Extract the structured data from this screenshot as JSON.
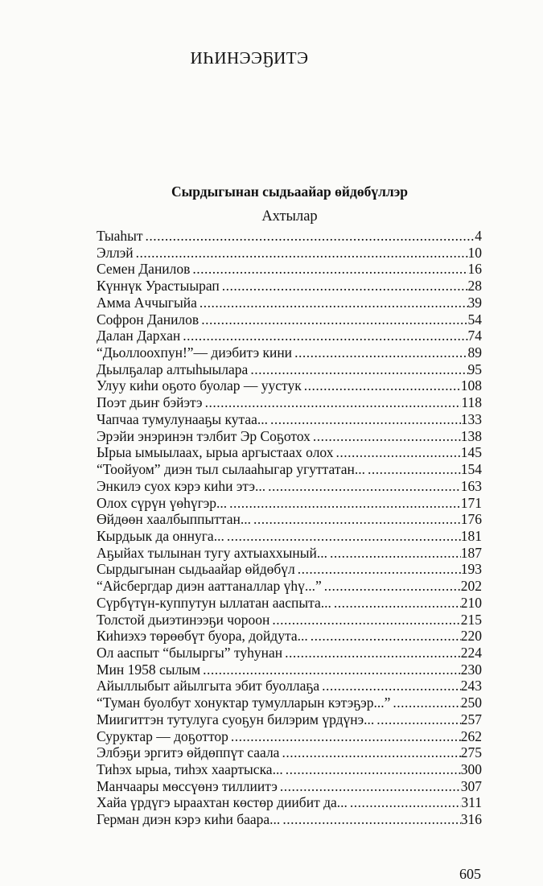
{
  "header": {
    "title": "ИҺИНЭЭҔИТЭ"
  },
  "subtitle": "Сырдыгынан сыдьаайар өйдөбүллэр",
  "section": "Ахтылар",
  "entries": [
    {
      "title": "Тыаһыт",
      "page": "4"
    },
    {
      "title": "Эллэй",
      "page": "10"
    },
    {
      "title": "Семен Данилов",
      "page": "16"
    },
    {
      "title": "Күннүк Урастыырап",
      "page": "28"
    },
    {
      "title": "Амма Аччыгыйа",
      "page": "39"
    },
    {
      "title": "Софрон Данилов",
      "page": "54"
    },
    {
      "title": "Далан Дархан",
      "page": "74"
    },
    {
      "title": "“Дьоллоохпун!”— диэбитэ кини",
      "page": "89"
    },
    {
      "title": "Дьылҕалар алтыһыылара",
      "page": "95"
    },
    {
      "title": "Улуу киһи оҕото буолар — уустук",
      "page": "108"
    },
    {
      "title": "Поэт дьиҥ бэйэтэ",
      "page": "118"
    },
    {
      "title": "Чапчаа тумулунааҕы кутаа...",
      "page": "133"
    },
    {
      "title": "Эрэйи энэринэн тэлбит Эр Соҕотох",
      "page": "138"
    },
    {
      "title": "Ырыа ымыылаах, ырыа аргыстаах олох",
      "page": "145"
    },
    {
      "title": "“Тоойуом” диэн тыл сылааһыгар угуттатан...",
      "page": "154"
    },
    {
      "title": "Энкилэ суох кэрэ киһи этэ...",
      "page": "163"
    },
    {
      "title": "Олох сүрүн үөһүгэр...",
      "page": "171"
    },
    {
      "title": "Өйдөөн хаалбыппыттан...",
      "page": "176"
    },
    {
      "title": "Кырдьык да оннуга...",
      "page": "181"
    },
    {
      "title": "Аҕыйах тылынан тугу ахтыаххыный...",
      "page": "187"
    },
    {
      "title": "Сырдыгынан сыдьаайар өйдөбүл",
      "page": "193"
    },
    {
      "title": "“Айсбергдар диэн ааттаналлар үһү...”",
      "page": "202"
    },
    {
      "title": "Сүрбүтүн-куппутун ыллатан ааспыта...",
      "page": "210"
    },
    {
      "title": "Толстой дьиэтинээҕи чороон",
      "page": "215"
    },
    {
      "title": "Киһиэхэ төрөөбүт буора, дойдута...",
      "page": "220"
    },
    {
      "title": "Ол ааспыт “былыргы” туһунан",
      "page": "224"
    },
    {
      "title": "Мин 1958 сылым",
      "page": "230"
    },
    {
      "title": "Айыллыбыт айылгыта эбит буоллаҕа",
      "page": "243"
    },
    {
      "title": "“Туман буолбут хонуктар тумулларын кэтэҕэр...”",
      "page": "250"
    },
    {
      "title": "Миигиттэн тутулуга суоҕун билэрим үрдүнэ...",
      "page": "257"
    },
    {
      "title": "Суруктар — доҕоттор",
      "page": "262"
    },
    {
      "title": "Элбэҕи эргитэ өйдөппүт саала",
      "page": "275"
    },
    {
      "title": "Тиһэх ырыа, тиһэх хаартыска...",
      "page": "300"
    },
    {
      "title": "Манчаары мөссүөнэ тиллиитэ",
      "page": "307"
    },
    {
      "title": "Хайа үрдүгэ ыраахтан көстөр диибит да...",
      "page": "311"
    },
    {
      "title": "Герман диэн кэрэ киһи баара...",
      "page": "316"
    }
  ],
  "footer": {
    "page_number": "605"
  }
}
